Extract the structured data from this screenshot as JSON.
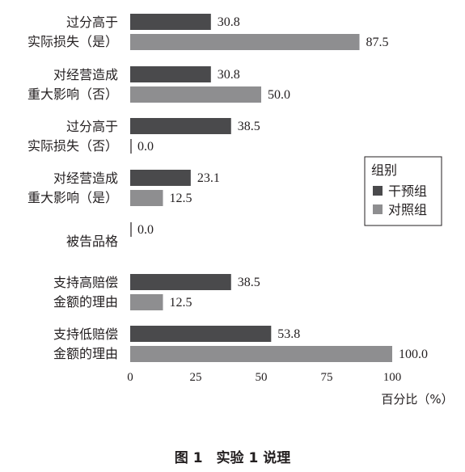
{
  "chart_data": {
    "type": "bar",
    "orientation": "horizontal",
    "categories": [
      [
        "过分高于",
        "实际损失（是）"
      ],
      [
        "对经营造成",
        "重大影响（否）"
      ],
      [
        "过分高于",
        "实际损失（否）"
      ],
      [
        "对经营造成",
        "重大影响（是）"
      ],
      [
        "被告品格"
      ],
      [
        "支持高赔偿",
        "金额的理由"
      ],
      [
        "支持低赔偿",
        "金额的理由"
      ]
    ],
    "series": [
      {
        "name": "干预组",
        "color": "#4a4a4c",
        "values": [
          30.8,
          30.8,
          38.5,
          23.1,
          0.0,
          38.5,
          53.8
        ]
      },
      {
        "name": "对照组",
        "color": "#8e8e90",
        "values": [
          87.5,
          50.0,
          0.0,
          12.5,
          null,
          12.5,
          100.0
        ]
      }
    ],
    "value_labels": [
      [
        "30.8",
        "87.5"
      ],
      [
        "30.8",
        "50.0"
      ],
      [
        "38.5",
        "0.0"
      ],
      [
        "23.1",
        "12.5"
      ],
      [
        "0.0"
      ],
      [
        "38.5",
        "12.5"
      ],
      [
        "53.8",
        "100.0"
      ]
    ],
    "xlim": [
      0,
      100
    ],
    "xticks": [
      "0",
      "25",
      "50",
      "75",
      "100"
    ],
    "xlabel": "百分比（%）",
    "legend": {
      "title": "组别",
      "placement": "right"
    },
    "grid": false
  },
  "caption": "图 1　实验 1 说理"
}
